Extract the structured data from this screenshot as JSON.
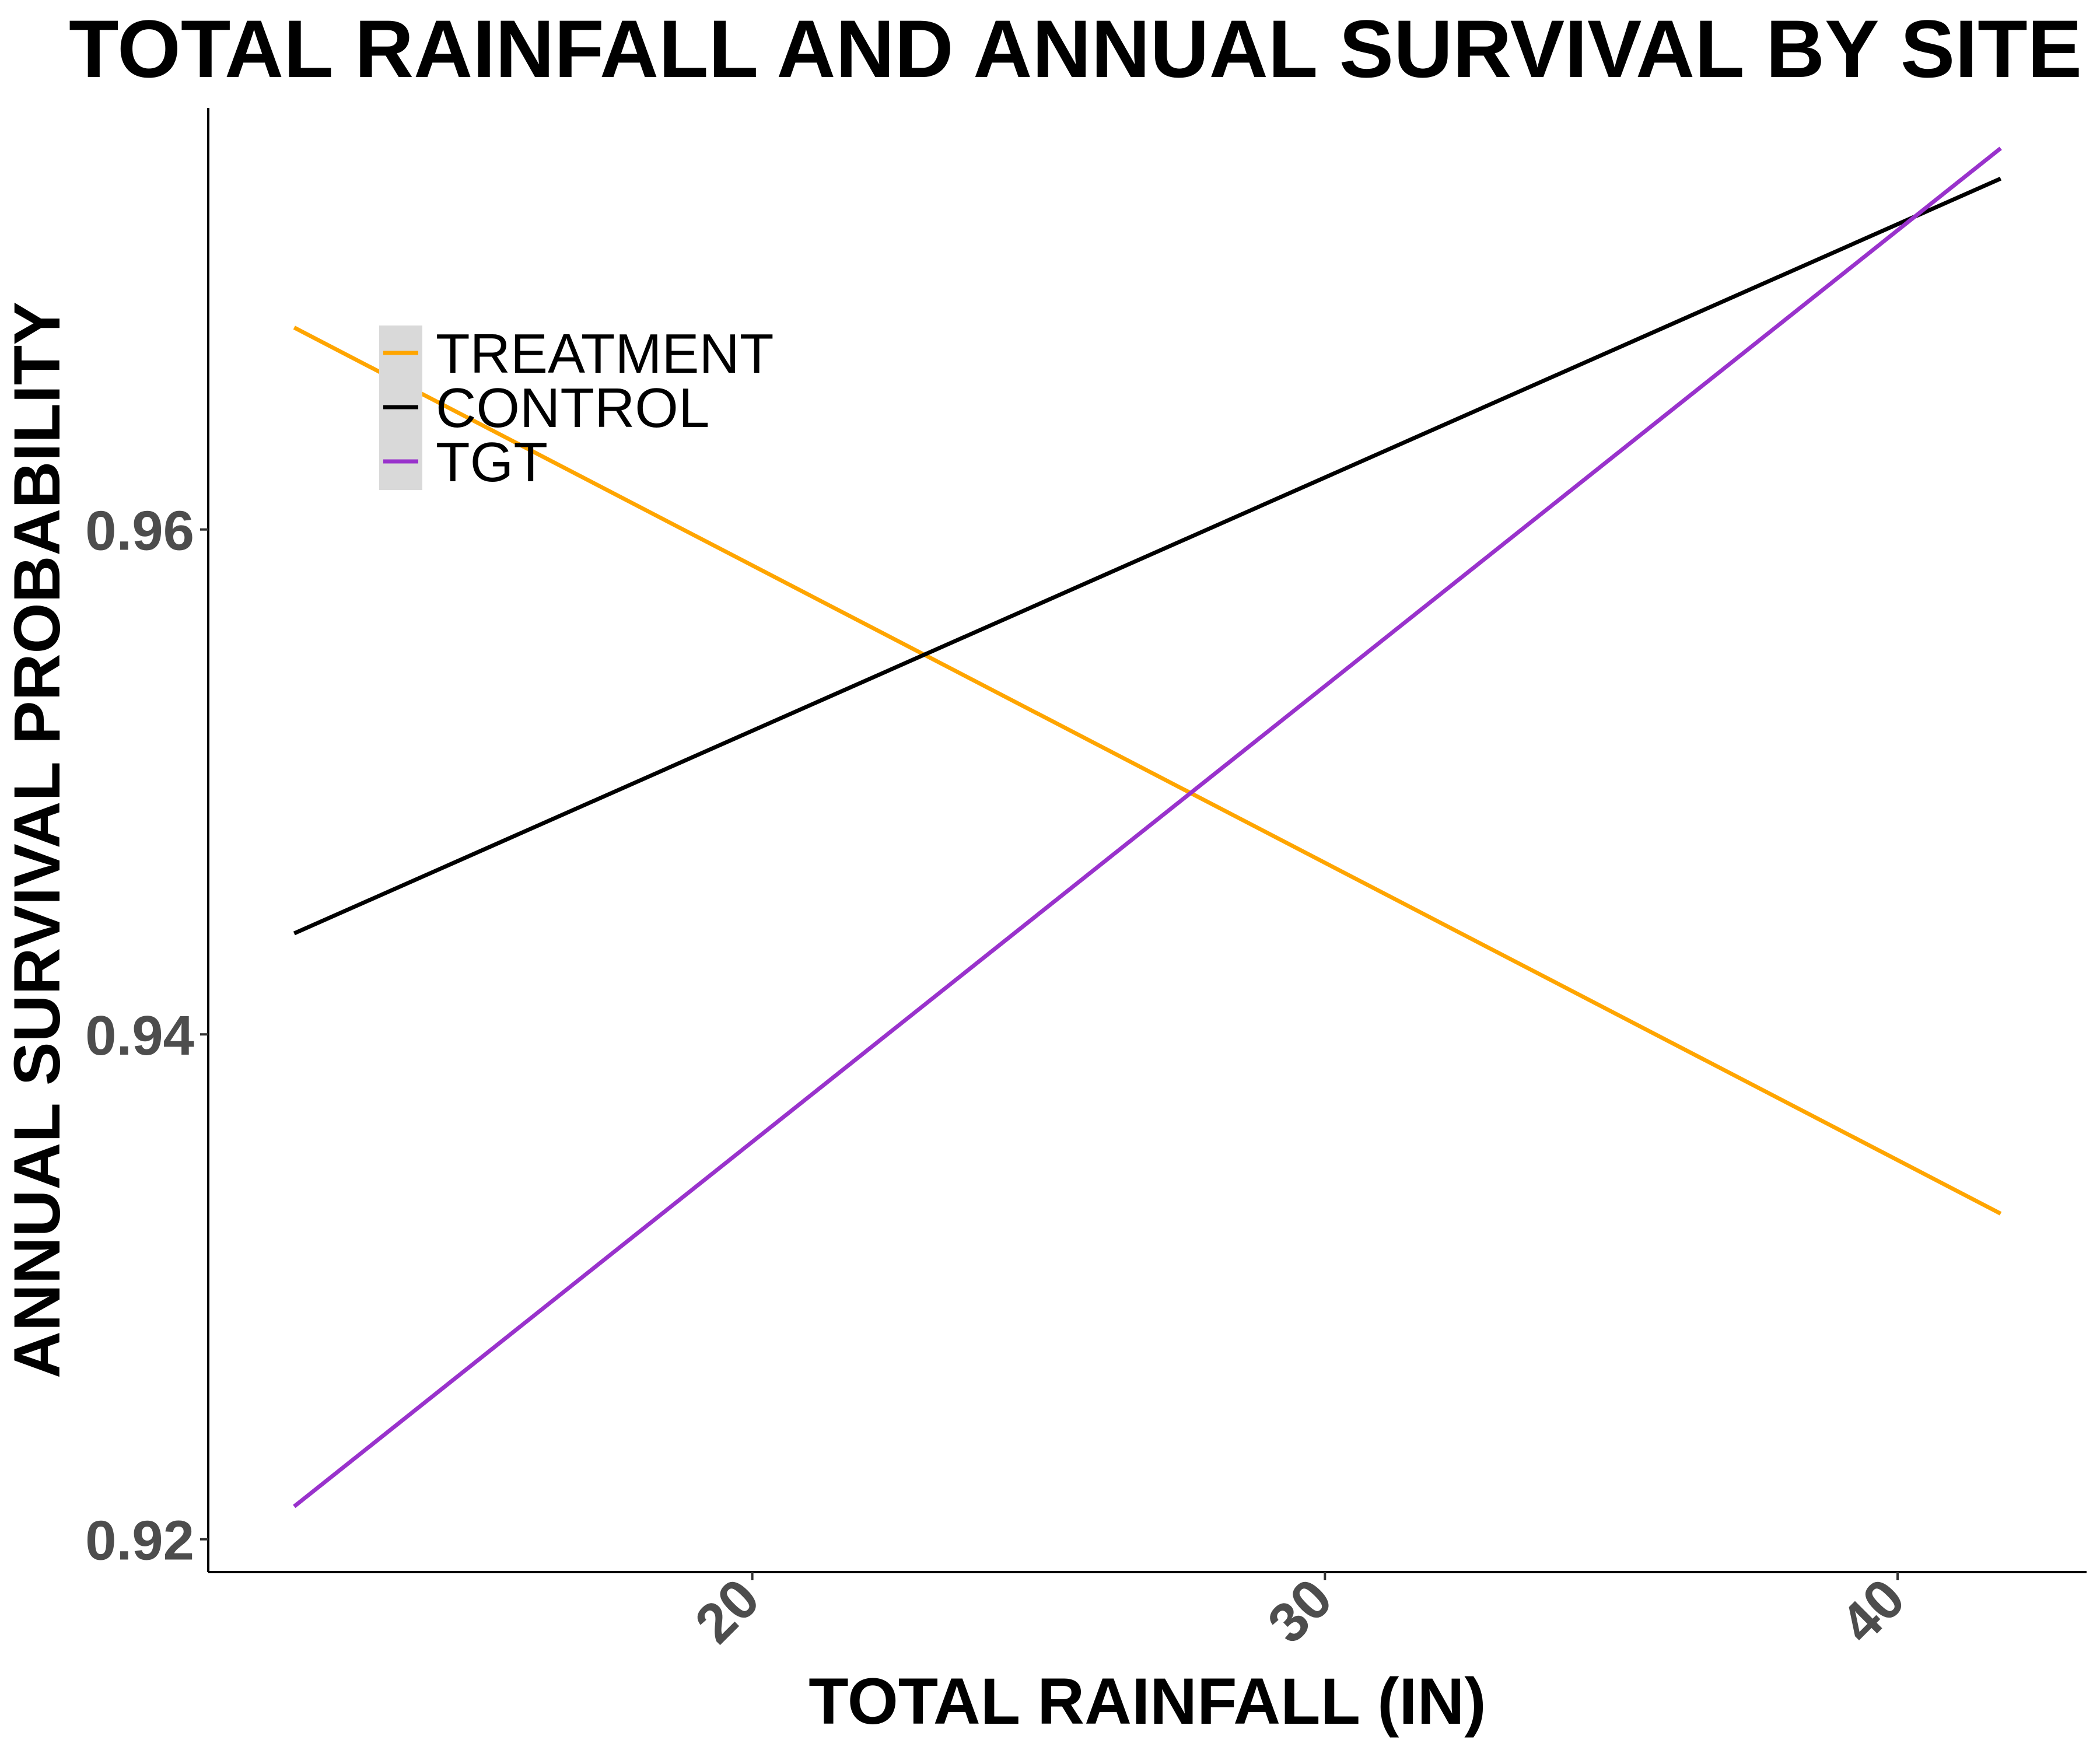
{
  "chart_data": {
    "type": "line",
    "title": "TOTAL RAINFALL AND ANNUAL SURVIVAL BY SITE",
    "xlabel": "TOTAL RAINFALL (IN)",
    "ylabel": "ANNUAL SURVIVAL PROBABILITY",
    "xlim": [
      10.5,
      43.3
    ],
    "ylim": [
      0.9187,
      0.9767
    ],
    "xticks": [
      20,
      30,
      40
    ],
    "xtick_labels": [
      "20",
      "30",
      "40"
    ],
    "yticks": [
      0.92,
      0.94,
      0.96
    ],
    "ytick_labels": [
      "0.92",
      "0.94",
      "0.96"
    ],
    "grid": false,
    "legend_position": "top-left",
    "series": [
      {
        "name": "TREATMENT",
        "color": "#FFA500",
        "x": [
          12.0,
          41.8
        ],
        "y": [
          0.968,
          0.9329
        ]
      },
      {
        "name": "CONTROL",
        "color": "#000000",
        "x": [
          12.0,
          41.8
        ],
        "y": [
          0.944,
          0.9739
        ]
      },
      {
        "name": "TGT",
        "color": "#9932CC",
        "x": [
          12.0,
          41.8
        ],
        "y": [
          0.9213,
          0.9751
        ]
      }
    ]
  }
}
